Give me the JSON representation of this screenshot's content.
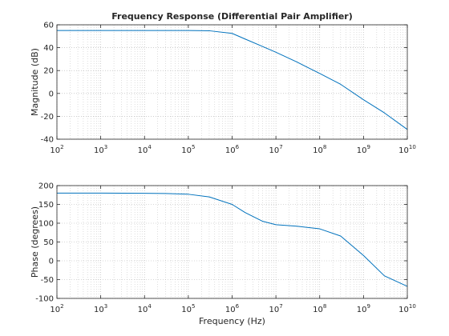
{
  "chart_data": [
    {
      "type": "line",
      "title": "Frequency Response (Differential Pair Amplifier)",
      "xlabel": "",
      "ylabel": "Magnitude (dB)",
      "xscale": "log",
      "xlim": [
        100,
        10000000000
      ],
      "ylim": [
        -40,
        60
      ],
      "yticks": [
        -40,
        -20,
        0,
        20,
        40,
        60
      ],
      "xtick_exponents": [
        2,
        3,
        4,
        5,
        6,
        7,
        8,
        9,
        10
      ],
      "grid": true,
      "series": [
        {
          "color": "#0072BD",
          "x": [
            100,
            1000,
            10000,
            100000,
            300000,
            1000000,
            2000000,
            5000000,
            10000000,
            30000000,
            100000000,
            300000000,
            1000000000,
            3000000000,
            10000000000
          ],
          "y": [
            55,
            55,
            55,
            55,
            54.8,
            52.5,
            47.5,
            41,
            36,
            27.5,
            17.5,
            8,
            -5.5,
            -17,
            -31.5
          ]
        }
      ]
    },
    {
      "type": "line",
      "title": "",
      "xlabel": "Frequency (Hz)",
      "ylabel": "Phase (degrees)",
      "xscale": "log",
      "xlim": [
        100,
        10000000000
      ],
      "ylim": [
        -100,
        200
      ],
      "yticks": [
        -100,
        -50,
        0,
        50,
        100,
        150,
        200
      ],
      "xtick_exponents": [
        2,
        3,
        4,
        5,
        6,
        7,
        8,
        9,
        10
      ],
      "grid": true,
      "series": [
        {
          "color": "#0072BD",
          "x": [
            100,
            1000,
            10000,
            30000,
            100000,
            300000,
            1000000,
            2000000,
            5000000,
            10000000,
            30000000,
            100000000,
            300000000,
            1000000000,
            3000000000,
            10000000000
          ],
          "y": [
            180,
            180,
            179.5,
            179,
            177,
            170,
            150,
            128,
            105,
            96,
            92,
            85,
            66,
            14,
            -40,
            -68
          ]
        }
      ]
    }
  ]
}
